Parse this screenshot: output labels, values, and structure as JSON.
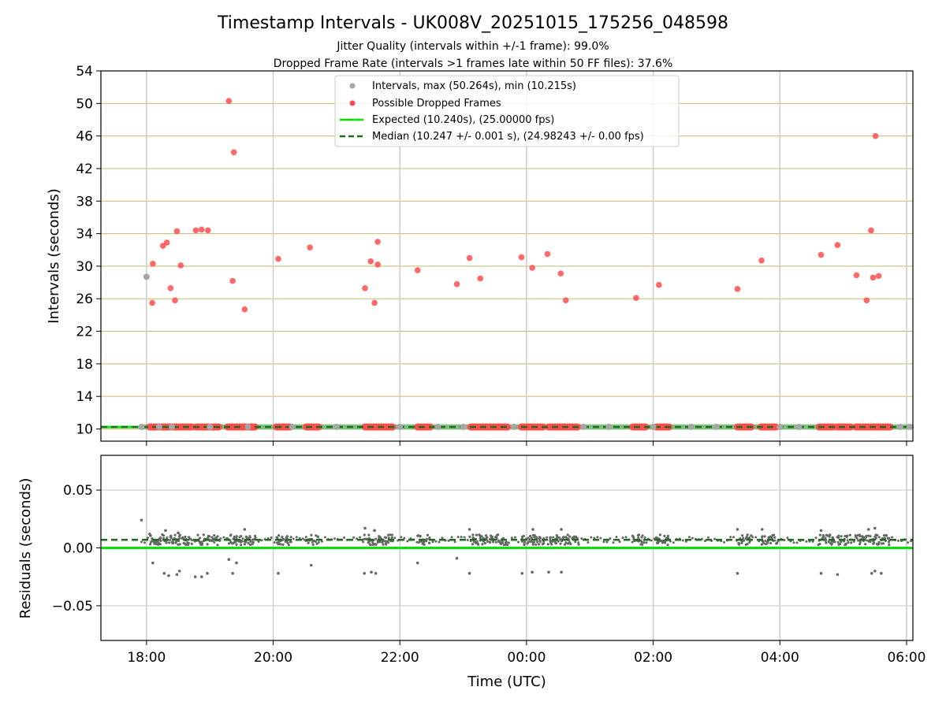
{
  "chart_data": {
    "type": "scatter",
    "title": "Timestamp Intervals - UK008V_20251015_175256_048598",
    "subtitle_1": "Jitter Quality (intervals within +/-1 frame): 99.0%",
    "subtitle_2": "Dropped Frame Rate (intervals >1 frames late within 50 FF files): 37.6%",
    "xlabel": "Time (UTC)",
    "x_tick_labels": [
      "18:00",
      "20:00",
      "22:00",
      "00:00",
      "02:00",
      "04:00",
      "06:00"
    ],
    "x_tick_hours": [
      18,
      20,
      22,
      24,
      26,
      28,
      30
    ],
    "xlim_hours": [
      17.28,
      30.1
    ],
    "top": {
      "ylabel": "Intervals (seconds)",
      "ylim": [
        8.5,
        54
      ],
      "y_ticks": [
        10,
        14,
        18,
        22,
        26,
        30,
        34,
        38,
        42,
        46,
        50,
        54
      ],
      "y_tick_labels": [
        "10",
        "14",
        "18",
        "22",
        "26",
        "30",
        "34",
        "38",
        "42",
        "46",
        "50",
        "54"
      ],
      "legend": {
        "intervals": "Intervals, max (50.264s), min (10.215s)",
        "dropped": "Possible Dropped Frames",
        "expected": "Expected (10.240s), (25.00000 fps)",
        "median": "Median (10.247 +/- 0.001 s), (24.98243 +/- 0.00 fps)"
      },
      "expected_value": 10.24,
      "median_value": 10.247,
      "gray_points": [
        [
          17.92,
          10.25
        ],
        [
          18.0,
          28.7
        ],
        [
          18.2,
          10.25
        ],
        [
          18.4,
          10.25
        ],
        [
          19.0,
          10.25
        ],
        [
          19.6,
          10.25
        ],
        [
          20.3,
          10.25
        ],
        [
          21.0,
          10.25
        ],
        [
          22.0,
          10.25
        ],
        [
          22.6,
          10.25
        ],
        [
          23.0,
          10.25
        ],
        [
          23.8,
          10.25
        ],
        [
          24.9,
          10.25
        ],
        [
          25.3,
          10.25
        ],
        [
          26.0,
          10.25
        ],
        [
          26.6,
          10.25
        ],
        [
          27.0,
          10.25
        ],
        [
          28.0,
          10.25
        ],
        [
          28.3,
          10.25
        ],
        [
          29.9,
          10.25
        ],
        [
          30.05,
          10.25
        ]
      ],
      "dropped_points": [
        [
          18.09,
          25.5
        ],
        [
          18.1,
          30.3
        ],
        [
          18.26,
          32.5
        ],
        [
          18.32,
          32.9
        ],
        [
          18.38,
          27.3
        ],
        [
          18.45,
          25.8
        ],
        [
          18.48,
          34.3
        ],
        [
          18.54,
          30.1
        ],
        [
          18.78,
          34.4
        ],
        [
          18.87,
          34.5
        ],
        [
          18.97,
          34.4
        ],
        [
          19.3,
          50.3
        ],
        [
          19.36,
          28.2
        ],
        [
          19.38,
          44.0
        ],
        [
          19.55,
          24.7
        ],
        [
          20.08,
          30.9
        ],
        [
          20.58,
          32.3
        ],
        [
          21.45,
          27.3
        ],
        [
          21.54,
          30.6
        ],
        [
          21.6,
          25.5
        ],
        [
          21.65,
          33.0
        ],
        [
          21.65,
          30.2
        ],
        [
          22.28,
          29.5
        ],
        [
          22.9,
          27.8
        ],
        [
          23.1,
          31.0
        ],
        [
          23.27,
          28.5
        ],
        [
          23.92,
          31.1
        ],
        [
          24.09,
          29.8
        ],
        [
          24.33,
          31.5
        ],
        [
          24.54,
          29.1
        ],
        [
          24.62,
          25.8
        ],
        [
          25.73,
          26.1
        ],
        [
          26.09,
          27.7
        ],
        [
          27.33,
          27.2
        ],
        [
          27.71,
          30.7
        ],
        [
          28.65,
          31.4
        ],
        [
          28.91,
          32.6
        ],
        [
          29.21,
          28.9
        ],
        [
          29.37,
          25.8
        ],
        [
          29.44,
          34.4
        ],
        [
          29.47,
          28.6
        ],
        [
          29.51,
          46.0
        ],
        [
          29.56,
          28.8
        ]
      ],
      "baseline_clusters": [
        [
          18.05,
          18.72
        ],
        [
          18.78,
          19.15
        ],
        [
          19.28,
          19.72
        ],
        [
          20.05,
          20.28
        ],
        [
          20.52,
          20.72
        ],
        [
          21.45,
          21.9
        ],
        [
          22.28,
          22.48
        ],
        [
          23.12,
          23.7
        ],
        [
          23.92,
          24.28
        ],
        [
          24.35,
          24.55
        ],
        [
          24.55,
          24.82
        ],
        [
          25.68,
          25.88
        ],
        [
          26.05,
          26.25
        ],
        [
          27.33,
          27.55
        ],
        [
          27.7,
          27.95
        ],
        [
          28.62,
          28.85
        ],
        [
          28.9,
          29.12
        ],
        [
          29.2,
          29.75
        ]
      ]
    },
    "bottom": {
      "ylabel": "Residuals (seconds)",
      "ylim": [
        -0.08,
        0.08
      ],
      "y_ticks": [
        0.05,
        0.0,
        -0.05
      ],
      "y_tick_labels": [
        "0.05",
        "0.00",
        "−0.05"
      ],
      "expected_residual": 0.0,
      "median_residual": 0.007,
      "outlier_points": [
        [
          17.92,
          0.024
        ],
        [
          18.1,
          -0.013
        ],
        [
          18.28,
          -0.022
        ],
        [
          18.35,
          -0.024
        ],
        [
          18.48,
          -0.023
        ],
        [
          18.52,
          -0.02
        ],
        [
          18.77,
          -0.025
        ],
        [
          18.87,
          -0.025
        ],
        [
          18.96,
          -0.022
        ],
        [
          19.3,
          -0.01
        ],
        [
          19.36,
          -0.022
        ],
        [
          19.42,
          -0.013
        ],
        [
          20.08,
          -0.022
        ],
        [
          20.6,
          -0.015
        ],
        [
          21.44,
          -0.022
        ],
        [
          21.55,
          -0.021
        ],
        [
          21.62,
          -0.022
        ],
        [
          22.28,
          -0.013
        ],
        [
          22.9,
          -0.009
        ],
        [
          23.1,
          -0.022
        ],
        [
          23.93,
          -0.022
        ],
        [
          24.09,
          -0.021
        ],
        [
          24.35,
          -0.021
        ],
        [
          24.55,
          -0.021
        ],
        [
          27.33,
          -0.022
        ],
        [
          28.65,
          -0.022
        ],
        [
          28.91,
          -0.023
        ],
        [
          29.45,
          -0.022
        ],
        [
          29.5,
          -0.02
        ],
        [
          29.6,
          -0.022
        ],
        [
          18.05,
          0.012
        ],
        [
          18.3,
          0.015
        ],
        [
          18.5,
          0.013
        ],
        [
          19.55,
          0.016
        ],
        [
          21.45,
          0.017
        ],
        [
          21.6,
          0.015
        ],
        [
          23.1,
          0.016
        ],
        [
          24.1,
          0.016
        ],
        [
          24.55,
          0.016
        ],
        [
          27.33,
          0.016
        ],
        [
          27.72,
          0.016
        ],
        [
          28.65,
          0.015
        ],
        [
          29.4,
          0.016
        ],
        [
          29.5,
          0.017
        ]
      ]
    },
    "colors": {
      "gray_point": "#a6a6a6",
      "dropped_point": "#ff4d4d",
      "expected_line": "#00e600",
      "median_line": "#1a6e1a",
      "hgrid_top": "#c8b96a",
      "vgrid": "#cccccc",
      "residual_point": "#666666"
    }
  }
}
